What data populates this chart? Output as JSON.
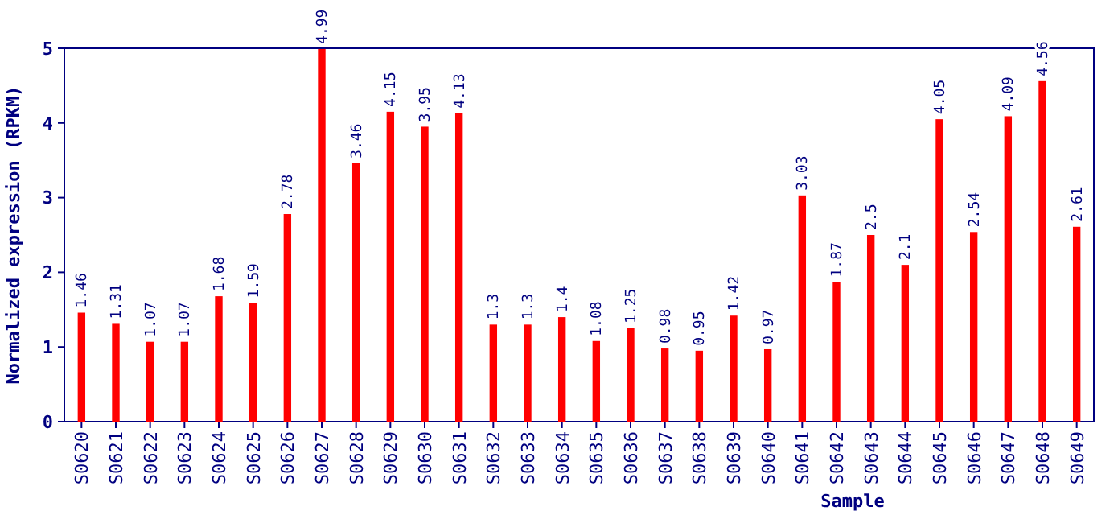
{
  "chart_data": {
    "type": "bar",
    "xlabel": "Sample",
    "ylabel": "Normalized expression (RPKM)",
    "categories": [
      "S0620",
      "S0621",
      "S0622",
      "S0623",
      "S0624",
      "S0625",
      "S0626",
      "S0627",
      "S0628",
      "S0629",
      "S0630",
      "S0631",
      "S0632",
      "S0633",
      "S0634",
      "S0635",
      "S0636",
      "S0637",
      "S0638",
      "S0639",
      "S0640",
      "S0641",
      "S0642",
      "S0643",
      "S0644",
      "S0645",
      "S0646",
      "S0647",
      "S0648",
      "S0649"
    ],
    "values": [
      1.46,
      1.31,
      1.07,
      1.07,
      1.68,
      1.59,
      2.78,
      4.99,
      3.46,
      4.15,
      3.95,
      4.13,
      1.3,
      1.3,
      1.4,
      1.08,
      1.25,
      0.98,
      0.95,
      1.42,
      0.97,
      3.03,
      1.87,
      2.5,
      2.1,
      4.05,
      2.54,
      4.09,
      4.56,
      2.61
    ],
    "color": "#ff0000",
    "ylim": [
      0,
      5
    ],
    "yticks": [
      0,
      1,
      2,
      3,
      4,
      5
    ],
    "data_labels": true,
    "grid": false
  }
}
